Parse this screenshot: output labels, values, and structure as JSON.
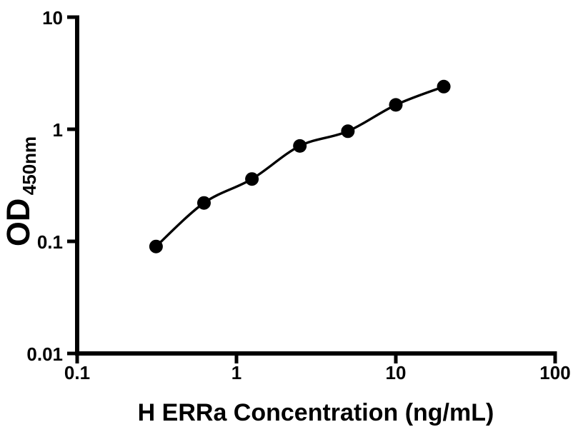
{
  "figure": {
    "background_color": "#ffffff",
    "foreground_color": "#000000"
  },
  "chart_data": {
    "type": "scatter",
    "title": "",
    "xlabel": "H ERRa Concentration (ng/mL)",
    "ylabel_main": "OD",
    "ylabel_sub": "450nm",
    "x_scale": "log",
    "y_scale": "log",
    "xlim": [
      0.1,
      100
    ],
    "ylim": [
      0.01,
      10
    ],
    "grid": false,
    "legend": false,
    "x_ticks": [
      {
        "value": 0.1,
        "label": "0.1"
      },
      {
        "value": 1,
        "label": "1"
      },
      {
        "value": 10,
        "label": "10"
      },
      {
        "value": 100,
        "label": "100"
      }
    ],
    "y_ticks": [
      {
        "value": 0.01,
        "label": "0.01"
      },
      {
        "value": 0.1,
        "label": "0.1"
      },
      {
        "value": 1,
        "label": "1"
      },
      {
        "value": 10,
        "label": "10"
      }
    ],
    "series": [
      {
        "marker": "filled-circle",
        "color": "#000000",
        "points": [
          {
            "x": 0.3125,
            "y": 0.09
          },
          {
            "x": 0.625,
            "y": 0.22
          },
          {
            "x": 1.25,
            "y": 0.36
          },
          {
            "x": 2.5,
            "y": 0.71
          },
          {
            "x": 5,
            "y": 0.96
          },
          {
            "x": 10,
            "y": 1.65
          },
          {
            "x": 20,
            "y": 2.4
          }
        ]
      }
    ]
  }
}
